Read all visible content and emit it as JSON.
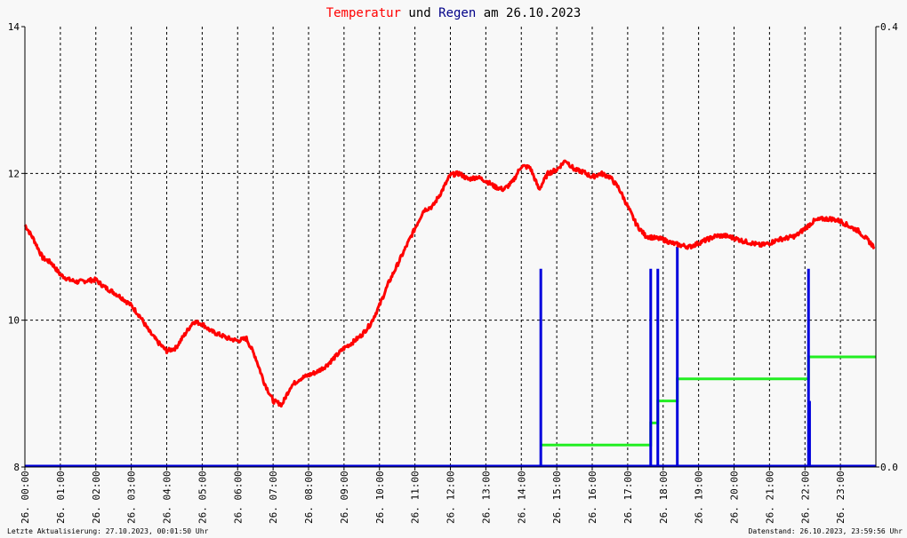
{
  "title": {
    "part1": "Temperatur",
    "part2": " und ",
    "part3": "Regen",
    "part4": " am 26.10.2023"
  },
  "colors": {
    "temperature": "#ff0000",
    "rain_bars": "#0000dd",
    "rain_sum": "#22ee22",
    "axis": "#000000",
    "grid": "#000000"
  },
  "footer": {
    "left": "Letzte Aktualisierung: 27.10.2023, 00:01:50 Uhr",
    "right": "Datenstand: 26.10.2023, 23:59:56 Uhr"
  },
  "chart_data": {
    "type": "line",
    "x_unit": "hour",
    "xlim": [
      0,
      24
    ],
    "x_tick_labels": [
      "26. 00:00",
      "26. 01:00",
      "26. 02:00",
      "26. 03:00",
      "26. 04:00",
      "26. 05:00",
      "26. 06:00",
      "26. 07:00",
      "26. 08:00",
      "26. 09:00",
      "26. 10:00",
      "26. 11:00",
      "26. 12:00",
      "26. 13:00",
      "26. 14:00",
      "26. 15:00",
      "26. 16:00",
      "26. 17:00",
      "26. 18:00",
      "26. 19:00",
      "26. 20:00",
      "26. 21:00",
      "26. 22:00",
      "26. 23:00"
    ],
    "y_left": {
      "range": [
        8,
        14
      ],
      "ticks": [
        "8",
        "10",
        "12",
        "14"
      ]
    },
    "y_right": {
      "range": [
        0,
        0.4
      ],
      "ticks": [
        "0.0",
        "0.4"
      ]
    },
    "grid": true,
    "temperature": {
      "x": [
        0,
        0.25,
        0.5,
        0.75,
        1.0,
        1.25,
        1.5,
        1.75,
        2.0,
        2.25,
        2.5,
        2.75,
        3.0,
        3.25,
        3.5,
        3.75,
        4.0,
        4.25,
        4.5,
        4.75,
        5.0,
        5.25,
        5.5,
        5.75,
        6.0,
        6.25,
        6.5,
        6.75,
        7.0,
        7.25,
        7.5,
        7.75,
        8.0,
        8.25,
        8.5,
        8.75,
        9.0,
        9.25,
        9.5,
        9.75,
        10.0,
        10.25,
        10.5,
        10.75,
        11.0,
        11.25,
        11.5,
        11.75,
        12.0,
        12.25,
        12.5,
        12.75,
        13.0,
        13.25,
        13.5,
        13.75,
        14.0,
        14.25,
        14.5,
        14.75,
        15.0,
        15.25,
        15.5,
        15.75,
        16.0,
        16.25,
        16.5,
        16.75,
        17.0,
        17.25,
        17.5,
        17.75,
        18.0,
        18.25,
        18.5,
        18.75,
        19.0,
        19.25,
        19.5,
        19.75,
        20.0,
        20.25,
        20.5,
        20.75,
        21.0,
        21.25,
        21.5,
        21.75,
        22.0,
        22.25,
        22.5,
        22.75,
        23.0,
        23.25,
        23.5,
        23.75,
        23.95
      ],
      "y": [
        11.3,
        11.1,
        10.85,
        10.78,
        10.62,
        10.55,
        10.52,
        10.54,
        10.55,
        10.45,
        10.38,
        10.3,
        10.2,
        10.05,
        9.85,
        9.7,
        9.58,
        9.62,
        9.8,
        9.98,
        9.95,
        9.85,
        9.8,
        9.75,
        9.72,
        9.75,
        9.5,
        9.15,
        8.9,
        8.85,
        9.1,
        9.2,
        9.25,
        9.3,
        9.38,
        9.5,
        9.62,
        9.7,
        9.8,
        9.95,
        10.2,
        10.5,
        10.75,
        11.0,
        11.25,
        11.5,
        11.55,
        11.75,
        11.98,
        12.0,
        11.92,
        11.95,
        11.9,
        11.82,
        11.78,
        11.88,
        12.1,
        12.08,
        11.78,
        12.0,
        12.05,
        12.18,
        12.05,
        12.02,
        11.95,
        12.0,
        11.95,
        11.8,
        11.55,
        11.3,
        11.15,
        11.12,
        11.1,
        11.05,
        11.02,
        11.0,
        11.05,
        11.1,
        11.15,
        11.15,
        11.12,
        11.08,
        11.05,
        11.02,
        11.05,
        11.1,
        11.12,
        11.15,
        11.25,
        11.35,
        11.38,
        11.38,
        11.35,
        11.28,
        11.22,
        11.1,
        11.0
      ]
    },
    "rain_events": {
      "x": [
        14.55,
        17.65,
        17.85,
        18.4,
        22.1,
        22.13
      ],
      "y": [
        0.18,
        0.18,
        0.18,
        0.2,
        0.18,
        0.06
      ]
    },
    "rain_sum": {
      "x": [
        14.55,
        17.65,
        17.85,
        18.4,
        22.1,
        24.0
      ],
      "y": [
        0.02,
        0.04,
        0.06,
        0.08,
        0.1,
        0.1
      ]
    }
  }
}
